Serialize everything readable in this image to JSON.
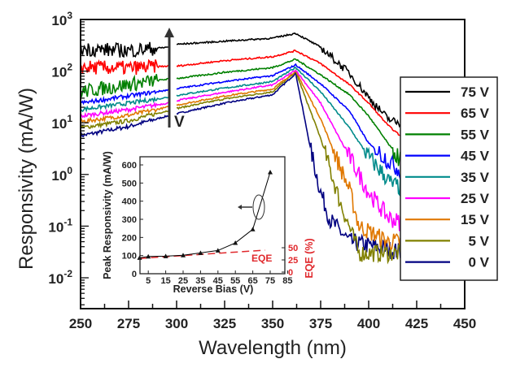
{
  "chart_data": [
    {
      "type": "line",
      "xlabel": "Wavelength (nm)",
      "ylabel": "Responsivity (mA/W)",
      "xlim": [
        250,
        450
      ],
      "ylim": [
        0.0025,
        1000
      ],
      "yscale": "log",
      "xticks": [
        "250",
        "275",
        "300",
        "325",
        "350",
        "375",
        "400",
        "425",
        "450"
      ],
      "yticks": [
        {
          "base": "10",
          "exp": "3"
        },
        {
          "base": "10",
          "exp": "2"
        },
        {
          "base": "10",
          "exp": "1"
        },
        {
          "base": "10",
          "exp": "0"
        },
        {
          "base": "10",
          "exp": "-1"
        },
        {
          "base": "10",
          "exp": "-2"
        }
      ],
      "legend_placement": "right",
      "annotation_arrow_label": "V",
      "series": [
        {
          "name": "75 V",
          "color": "#000000",
          "x": [
            250,
            275,
            295,
            300,
            325,
            350,
            362,
            375,
            390,
            400,
            410,
            418
          ],
          "y": [
            270,
            250,
            290,
            330,
            380,
            435,
            540,
            290,
            91,
            31,
            12,
            9
          ]
        },
        {
          "name": "65 V",
          "color": "#ff0000",
          "x": [
            250,
            275,
            295,
            300,
            325,
            350,
            362,
            375,
            390,
            400,
            410,
            418
          ],
          "y": [
            118,
            115,
            125,
            125,
            160,
            190,
            250,
            140,
            55,
            24,
            9,
            5
          ]
        },
        {
          "name": "55 V",
          "color": "#008000",
          "x": [
            250,
            275,
            295,
            300,
            325,
            350,
            362,
            375,
            390,
            400,
            415,
            420
          ],
          "y": [
            40,
            55,
            70,
            72,
            95,
            117,
            170,
            85,
            35,
            13.5,
            2.2,
            1.5
          ]
        },
        {
          "name": "45 V",
          "color": "#0000ff",
          "x": [
            250,
            275,
            295,
            300,
            325,
            350,
            362,
            375,
            390,
            400,
            415,
            420
          ],
          "y": [
            24,
            33,
            43,
            46,
            63,
            82,
            132,
            57,
            17,
            4,
            1.3,
            1
          ]
        },
        {
          "name": "35 V",
          "color": "#008b8b",
          "x": [
            250,
            275,
            295,
            300,
            325,
            350,
            362,
            375,
            390,
            400,
            412,
            420
          ],
          "y": [
            18,
            24,
            31,
            34,
            47,
            63,
            118,
            40,
            8,
            2.2,
            0.65,
            0.5
          ]
        },
        {
          "name": "25 V",
          "color": "#ff00ff",
          "x": [
            250,
            275,
            295,
            300,
            325,
            350,
            362,
            375,
            390,
            400,
            410,
            420
          ],
          "y": [
            13.5,
            18,
            24,
            27,
            39,
            54,
            105,
            24,
            2.2,
            0.45,
            0.15,
            0.1
          ]
        },
        {
          "name": "15 V",
          "color": "#e07800",
          "x": [
            250,
            275,
            295,
            300,
            325,
            350,
            362,
            375,
            390,
            395,
            410,
            420
          ],
          "y": [
            10.5,
            14,
            20,
            22,
            33,
            45,
            100,
            12,
            0.5,
            0.1,
            0.05,
            0.05
          ]
        },
        {
          "name": "5 V",
          "color": "#808000",
          "x": [
            250,
            275,
            295,
            300,
            325,
            350,
            362,
            375,
            385,
            395,
            410,
            420
          ],
          "y": [
            8,
            11,
            17,
            19,
            29,
            40,
            98,
            5,
            0.3,
            0.03,
            0.03,
            0.03
          ]
        },
        {
          "name": "0 V",
          "color": "#000080",
          "x": [
            250,
            275,
            295,
            300,
            325,
            350,
            362,
            370,
            375,
            380,
            390,
            420
          ],
          "y": [
            5.6,
            8.5,
            13.5,
            15,
            24,
            35,
            91,
            2.8,
            0.45,
            0.13,
            0.05,
            0.03
          ]
        }
      ]
    },
    {
      "type": "line",
      "xlabel": "Reverse Bias (V)",
      "ylabel": "Peak Responsivity (mA/W)",
      "y2label": "EQE (%)",
      "xlim": [
        0,
        85
      ],
      "ylim": [
        0,
        600
      ],
      "y2lim": [
        0,
        100
      ],
      "xticks": [
        "5",
        "15",
        "25",
        "35",
        "45",
        "55",
        "65",
        "75",
        "85"
      ],
      "yticks": [
        "0",
        "100",
        "200",
        "300",
        "400",
        "500",
        "600"
      ],
      "y2ticks": [
        "0",
        "25",
        "50"
      ],
      "series": [
        {
          "name": "Peak Responsivity",
          "color": "#000000",
          "marker": "triangle",
          "x": [
            0,
            5,
            15,
            25,
            35,
            45,
            55,
            65,
            75
          ],
          "y": [
            88,
            95,
            97,
            102,
            115,
            128,
            170,
            245,
            560
          ]
        },
        {
          "name": "EQE",
          "color": "#e0282c",
          "style": "dashed",
          "axis": "right",
          "x": [
            0,
            72
          ],
          "y": [
            28,
            45
          ]
        }
      ],
      "annotation_label": "EQE"
    }
  ]
}
